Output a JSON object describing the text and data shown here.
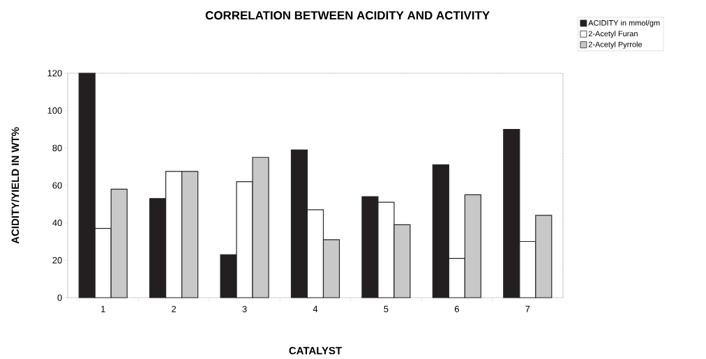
{
  "chart_data": {
    "type": "bar",
    "title": "CORRELATION BETWEEN  ACIDITY  AND ACTIVITY",
    "xlabel": "CATALYST",
    "ylabel": "ACIDITY/YIELD IN WT%",
    "categories": [
      "1",
      "2",
      "3",
      "4",
      "5",
      "6",
      "7"
    ],
    "series": [
      {
        "name": "ACIDITY in mmol/gm",
        "color": "#231f20",
        "values": [
          120,
          53,
          23,
          79,
          54,
          71,
          90
        ]
      },
      {
        "name": "2-Acetyl Furan",
        "color": "#ffffff",
        "values": [
          37,
          67.5,
          62,
          47,
          51,
          21,
          30
        ]
      },
      {
        "name": "2-Acetyl Pyrrole",
        "color": "#c8c8c8",
        "values": [
          58,
          67.5,
          75,
          31,
          39,
          55,
          44
        ]
      }
    ],
    "ylim": [
      0,
      120
    ],
    "yticks": [
      0,
      20,
      40,
      60,
      80,
      100,
      120
    ],
    "grid": false,
    "legend": "top right"
  }
}
